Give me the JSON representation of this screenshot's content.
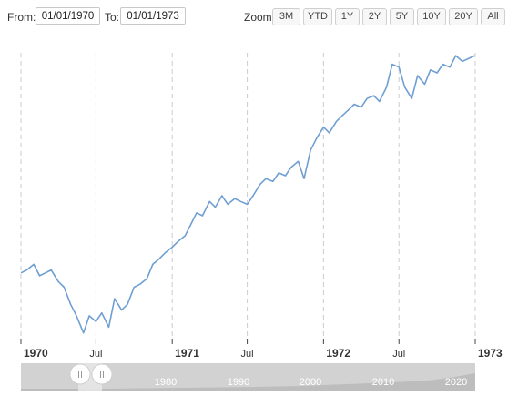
{
  "range_selector": {
    "from_label": "From:",
    "from_value": "01/01/1970",
    "to_label": "To:",
    "to_value": "01/01/1973",
    "zoom_label": "Zoom:",
    "zoom_buttons": [
      "3M",
      "YTD",
      "1Y",
      "2Y",
      "5Y",
      "10Y",
      "20Y",
      "All"
    ]
  },
  "navigator": {
    "labels": [
      "1980",
      "1990",
      "2000",
      "2010",
      "2020"
    ]
  },
  "colors": {
    "line": "#6f9fd2",
    "grid": "#cccccc",
    "navigator_bg": "#d2d2d2"
  },
  "chart_data": {
    "type": "line",
    "title": "",
    "xlabel": "",
    "ylabel": "",
    "xlim": [
      "1970-01-01",
      "1973-01-01"
    ],
    "ylim": [
      0,
      100
    ],
    "y_axis_labels_shown": false,
    "grid": "vertical dashed",
    "x_ticks": [
      {
        "label": "1970",
        "date": "1970-01-01",
        "bold": true
      },
      {
        "label": "Jul",
        "date": "1970-07-01",
        "bold": false
      },
      {
        "label": "1971",
        "date": "1971-01-01",
        "bold": true
      },
      {
        "label": "Jul",
        "date": "1971-07-01",
        "bold": false
      },
      {
        "label": "1972",
        "date": "1972-01-01",
        "bold": true
      },
      {
        "label": "Jul",
        "date": "1972-07-01",
        "bold": false
      },
      {
        "label": "1973",
        "date": "1973-01-01",
        "bold": true
      }
    ],
    "series": [
      {
        "color": "#6f9fd2",
        "points": [
          [
            "1970-01-01",
            23
          ],
          [
            "1970-01-15",
            24
          ],
          [
            "1970-02-01",
            26
          ],
          [
            "1970-02-15",
            22
          ],
          [
            "1970-03-01",
            23
          ],
          [
            "1970-03-15",
            24
          ],
          [
            "1970-04-01",
            20
          ],
          [
            "1970-04-15",
            18
          ],
          [
            "1970-05-01",
            12
          ],
          [
            "1970-05-15",
            8
          ],
          [
            "1970-06-01",
            2
          ],
          [
            "1970-06-15",
            8
          ],
          [
            "1970-07-01",
            6
          ],
          [
            "1970-07-15",
            9
          ],
          [
            "1970-08-01",
            4
          ],
          [
            "1970-08-15",
            14
          ],
          [
            "1970-09-01",
            10
          ],
          [
            "1970-09-15",
            12
          ],
          [
            "1970-10-01",
            18
          ],
          [
            "1970-10-15",
            19
          ],
          [
            "1970-11-01",
            21
          ],
          [
            "1970-11-15",
            26
          ],
          [
            "1970-12-01",
            28
          ],
          [
            "1970-12-15",
            30
          ],
          [
            "1971-01-01",
            32
          ],
          [
            "1971-01-15",
            34
          ],
          [
            "1971-02-01",
            36
          ],
          [
            "1971-02-15",
            40
          ],
          [
            "1971-03-01",
            44
          ],
          [
            "1971-03-15",
            43
          ],
          [
            "1971-04-01",
            48
          ],
          [
            "1971-04-15",
            46
          ],
          [
            "1971-05-01",
            50
          ],
          [
            "1971-05-15",
            47
          ],
          [
            "1971-06-01",
            49
          ],
          [
            "1971-06-15",
            48
          ],
          [
            "1971-07-01",
            47
          ],
          [
            "1971-07-15",
            50
          ],
          [
            "1971-08-01",
            54
          ],
          [
            "1971-08-15",
            56
          ],
          [
            "1971-09-01",
            55
          ],
          [
            "1971-09-15",
            58
          ],
          [
            "1971-10-01",
            57
          ],
          [
            "1971-10-15",
            60
          ],
          [
            "1971-11-01",
            62
          ],
          [
            "1971-11-15",
            56
          ],
          [
            "1971-12-01",
            66
          ],
          [
            "1971-12-15",
            70
          ],
          [
            "1972-01-01",
            74
          ],
          [
            "1972-01-15",
            72
          ],
          [
            "1972-02-01",
            76
          ],
          [
            "1972-02-15",
            78
          ],
          [
            "1972-03-01",
            80
          ],
          [
            "1972-03-15",
            82
          ],
          [
            "1972-04-01",
            81
          ],
          [
            "1972-04-15",
            84
          ],
          [
            "1972-05-01",
            85
          ],
          [
            "1972-05-15",
            83
          ],
          [
            "1972-06-01",
            88
          ],
          [
            "1972-06-15",
            96
          ],
          [
            "1972-07-01",
            95
          ],
          [
            "1972-07-15",
            88
          ],
          [
            "1972-08-01",
            84
          ],
          [
            "1972-08-15",
            92
          ],
          [
            "1972-09-01",
            89
          ],
          [
            "1972-09-15",
            94
          ],
          [
            "1972-10-01",
            93
          ],
          [
            "1972-10-15",
            96
          ],
          [
            "1972-11-01",
            95
          ],
          [
            "1972-11-15",
            99
          ],
          [
            "1972-12-01",
            97
          ],
          [
            "1972-12-31",
            99
          ]
        ]
      }
    ]
  }
}
